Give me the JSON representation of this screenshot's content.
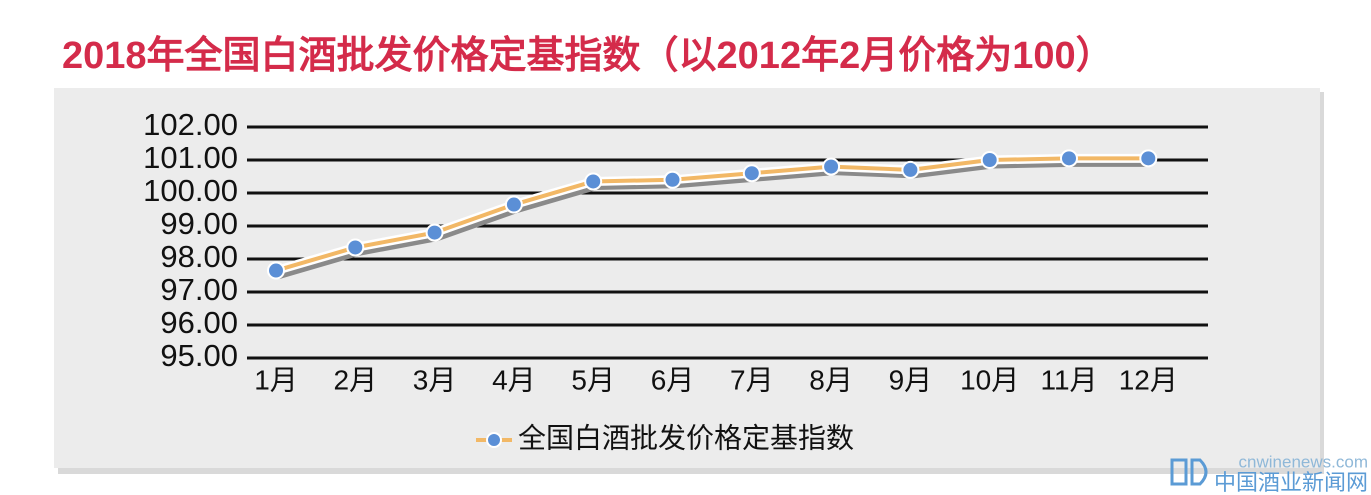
{
  "chart_data": {
    "type": "line",
    "title": "2018年全国白酒批发价格定基指数（以2012年2月价格为100）",
    "categories": [
      "1月",
      "2月",
      "3月",
      "4月",
      "5月",
      "6月",
      "7月",
      "8月",
      "9月",
      "10月",
      "11月",
      "12月"
    ],
    "series": [
      {
        "name": "全国白酒批发价格定基指数",
        "color": "#f2b866",
        "marker_color": "#5b8fd6",
        "values": [
          97.65,
          98.35,
          98.8,
          99.65,
          100.35,
          100.4,
          100.6,
          100.8,
          100.7,
          101.0,
          101.05,
          101.05
        ]
      }
    ],
    "ylim": [
      95,
      102
    ],
    "yticks": [
      {
        "value": 95,
        "label": "95.00"
      },
      {
        "value": 96,
        "label": "96.00"
      },
      {
        "value": 97,
        "label": "97.00"
      },
      {
        "value": 98,
        "label": "98.00"
      },
      {
        "value": 99,
        "label": "99.00"
      },
      {
        "value": 100,
        "label": "100.00"
      },
      {
        "value": 101,
        "label": "101.00"
      },
      {
        "value": 102,
        "label": "102.00"
      }
    ],
    "grid": true,
    "legend": "bottom"
  },
  "watermark": {
    "url": "cnwinenews.com",
    "name": "中国酒业新闻网"
  }
}
